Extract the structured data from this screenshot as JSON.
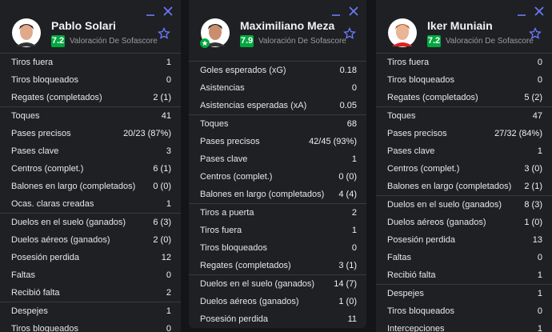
{
  "players": [
    {
      "name": "Pablo Solari",
      "rating": 7.2,
      "rating_label": "Valoración De Sofascore",
      "groups": [
        [
          {
            "label": "Tiros fuera",
            "value": "1"
          },
          {
            "label": "Tiros bloqueados",
            "value": "0"
          },
          {
            "label": "Regates (completados)",
            "value": "2 (1)"
          }
        ],
        [
          {
            "label": "Toques",
            "value": "41"
          },
          {
            "label": "Pases precisos",
            "value": "20/23 (87%)"
          },
          {
            "label": "Pases clave",
            "value": "3"
          },
          {
            "label": "Centros (complet.)",
            "value": "6 (1)"
          },
          {
            "label": "Balones en largo (completados)",
            "value": "0 (0)"
          },
          {
            "label": "Ocas. claras creadas",
            "value": "1"
          }
        ],
        [
          {
            "label": "Duelos en el suelo (ganados)",
            "value": "6 (3)"
          },
          {
            "label": "Duelos aéreos (ganados)",
            "value": "2 (0)"
          },
          {
            "label": "Posesión perdida",
            "value": "12"
          },
          {
            "label": "Faltas",
            "value": "0"
          },
          {
            "label": "Recibió falta",
            "value": "2"
          }
        ],
        [
          {
            "label": "Despejes",
            "value": "1"
          },
          {
            "label": "Tiros bloqueados",
            "value": "0"
          }
        ]
      ]
    },
    {
      "name": "Maximiliano Meza",
      "rating": 7.9,
      "rating_label": "Valoración De Sofascore",
      "groups": [
        [
          {
            "label": "Goles esperados (xG)",
            "value": "0.18"
          },
          {
            "label": "Asistencias",
            "value": "0"
          },
          {
            "label": "Asistencias esperadas (xA)",
            "value": "0.05"
          }
        ],
        [
          {
            "label": "Toques",
            "value": "68"
          },
          {
            "label": "Pases precisos",
            "value": "42/45 (93%)"
          },
          {
            "label": "Pases clave",
            "value": "1"
          },
          {
            "label": "Centros (complet.)",
            "value": "0 (0)"
          },
          {
            "label": "Balones en largo (completados)",
            "value": "4 (4)"
          }
        ],
        [
          {
            "label": "Tiros a puerta",
            "value": "2"
          },
          {
            "label": "Tiros fuera",
            "value": "1"
          },
          {
            "label": "Tiros bloqueados",
            "value": "0"
          },
          {
            "label": "Regates (completados)",
            "value": "3 (1)"
          }
        ],
        [
          {
            "label": "Duelos en el suelo (ganados)",
            "value": "14 (7)"
          },
          {
            "label": "Duelos aéreos (ganados)",
            "value": "1 (0)"
          },
          {
            "label": "Posesión perdida",
            "value": "11"
          }
        ]
      ]
    },
    {
      "name": "Iker Muniain",
      "rating": 7.2,
      "rating_label": "Valoración De Sofascore",
      "groups": [
        [
          {
            "label": "Tiros fuera",
            "value": "0"
          },
          {
            "label": "Tiros bloqueados",
            "value": "0"
          },
          {
            "label": "Regates (completados)",
            "value": "5 (2)"
          }
        ],
        [
          {
            "label": "Toques",
            "value": "47"
          },
          {
            "label": "Pases precisos",
            "value": "27/32 (84%)"
          },
          {
            "label": "Pases clave",
            "value": "1"
          },
          {
            "label": "Centros (complet.)",
            "value": "3 (0)"
          },
          {
            "label": "Balones en largo (completados)",
            "value": "2 (1)"
          }
        ],
        [
          {
            "label": "Duelos en el suelo (ganados)",
            "value": "8 (3)"
          },
          {
            "label": "Duelos aéreos (ganados)",
            "value": "1 (0)"
          },
          {
            "label": "Posesión perdida",
            "value": "13"
          },
          {
            "label": "Faltas",
            "value": "0"
          },
          {
            "label": "Recibió falta",
            "value": "1"
          }
        ],
        [
          {
            "label": "Despejes",
            "value": "1"
          },
          {
            "label": "Tiros bloqueados",
            "value": "0"
          },
          {
            "label": "Intercepciones",
            "value": "1"
          }
        ]
      ]
    }
  ]
}
